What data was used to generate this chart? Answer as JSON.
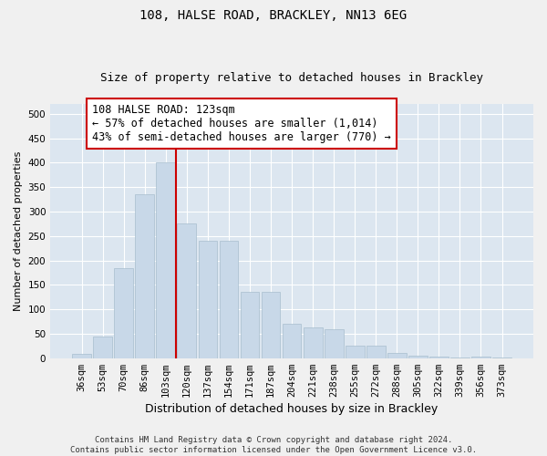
{
  "title1": "108, HALSE ROAD, BRACKLEY, NN13 6EG",
  "title2": "Size of property relative to detached houses in Brackley",
  "xlabel": "Distribution of detached houses by size in Brackley",
  "ylabel": "Number of detached properties",
  "categories": [
    "36sqm",
    "53sqm",
    "70sqm",
    "86sqm",
    "103sqm",
    "120sqm",
    "137sqm",
    "154sqm",
    "171sqm",
    "187sqm",
    "204sqm",
    "221sqm",
    "238sqm",
    "255sqm",
    "272sqm",
    "288sqm",
    "305sqm",
    "322sqm",
    "339sqm",
    "356sqm",
    "373sqm"
  ],
  "values": [
    8,
    45,
    185,
    335,
    400,
    275,
    240,
    240,
    135,
    135,
    70,
    63,
    60,
    25,
    25,
    10,
    5,
    4,
    2,
    3,
    2
  ],
  "bar_color": "#c8d8e8",
  "bar_edge_color": "#a8bece",
  "vline_x_idx": 5,
  "vline_color": "#cc0000",
  "annotation_text": "108 HALSE ROAD: 123sqm\n← 57% of detached houses are smaller (1,014)\n43% of semi-detached houses are larger (770) →",
  "annotation_box_color": "#ffffff",
  "annotation_box_edgecolor": "#cc0000",
  "ylim": [
    0,
    520
  ],
  "yticks": [
    0,
    50,
    100,
    150,
    200,
    250,
    300,
    350,
    400,
    450,
    500
  ],
  "plot_bg_color": "#dce6f0",
  "grid_color": "#ffffff",
  "fig_bg_color": "#f0f0f0",
  "footer_text": "Contains HM Land Registry data © Crown copyright and database right 2024.\nContains public sector information licensed under the Open Government Licence v3.0.",
  "title1_fontsize": 10,
  "title2_fontsize": 9,
  "xlabel_fontsize": 9,
  "ylabel_fontsize": 8,
  "tick_fontsize": 7.5,
  "annotation_fontsize": 8.5,
  "footer_fontsize": 6.5
}
